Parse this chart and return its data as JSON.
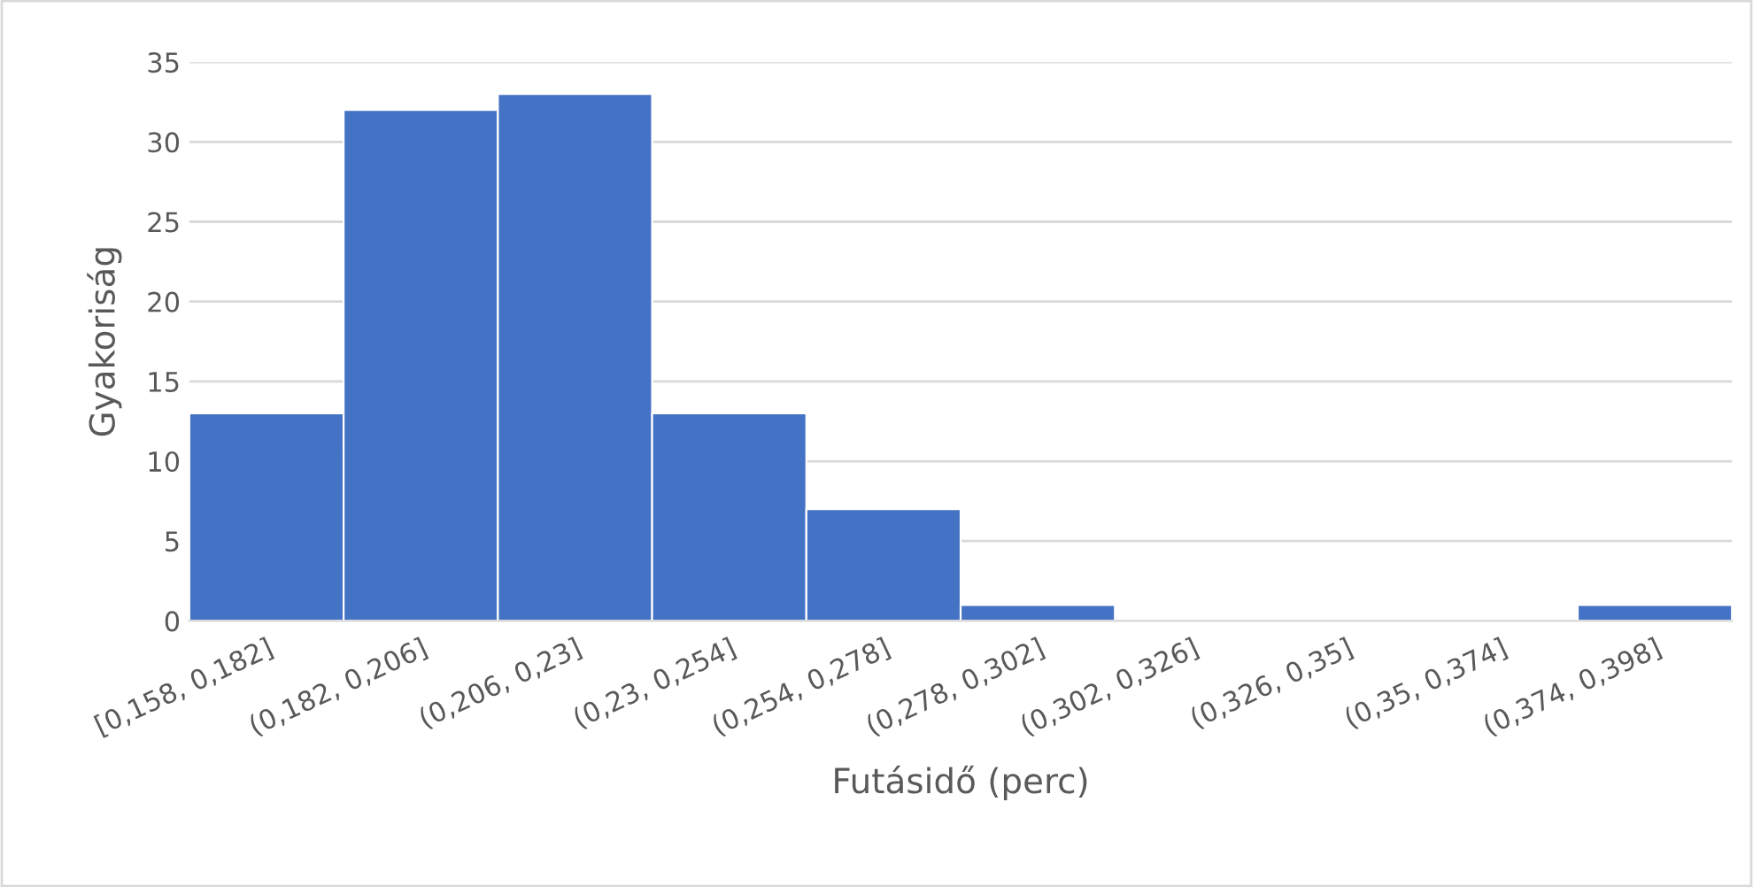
{
  "chart_data": {
    "type": "bar",
    "xlabel": "Futásidő (perc)",
    "ylabel": "Gyakoriság",
    "categories": [
      "[0,158, 0,182]",
      "(0,182, 0,206]",
      "(0,206, 0,23]",
      "(0,23, 0,254]",
      "(0,254, 0,278]",
      "(0,278, 0,302]",
      "(0,302, 0,326]",
      "(0,326, 0,35]",
      "(0,35, 0,374]",
      "(0,374, 0,398]"
    ],
    "values": [
      13,
      32,
      33,
      13,
      7,
      1,
      0,
      0,
      0,
      1
    ],
    "color": "#4472c4",
    "ylim": [
      0,
      35
    ],
    "yticks": [
      0,
      5,
      10,
      15,
      20,
      25,
      30,
      35
    ],
    "grid": "y",
    "legend": false
  }
}
